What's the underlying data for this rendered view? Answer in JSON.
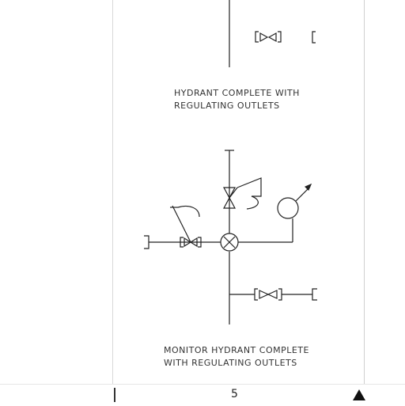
{
  "captions": {
    "hydrant_line1": "HYDRANT COMPLETE WITH",
    "hydrant_line2": "REGULATING OUTLETS",
    "monitor_line1": "MONITOR HYDRANT COMPLETE",
    "monitor_line2": "WITH REGULATING OUTLETS"
  },
  "footer": {
    "page_number": "5",
    "scroll_up_icon": "up-triangle-icon"
  }
}
